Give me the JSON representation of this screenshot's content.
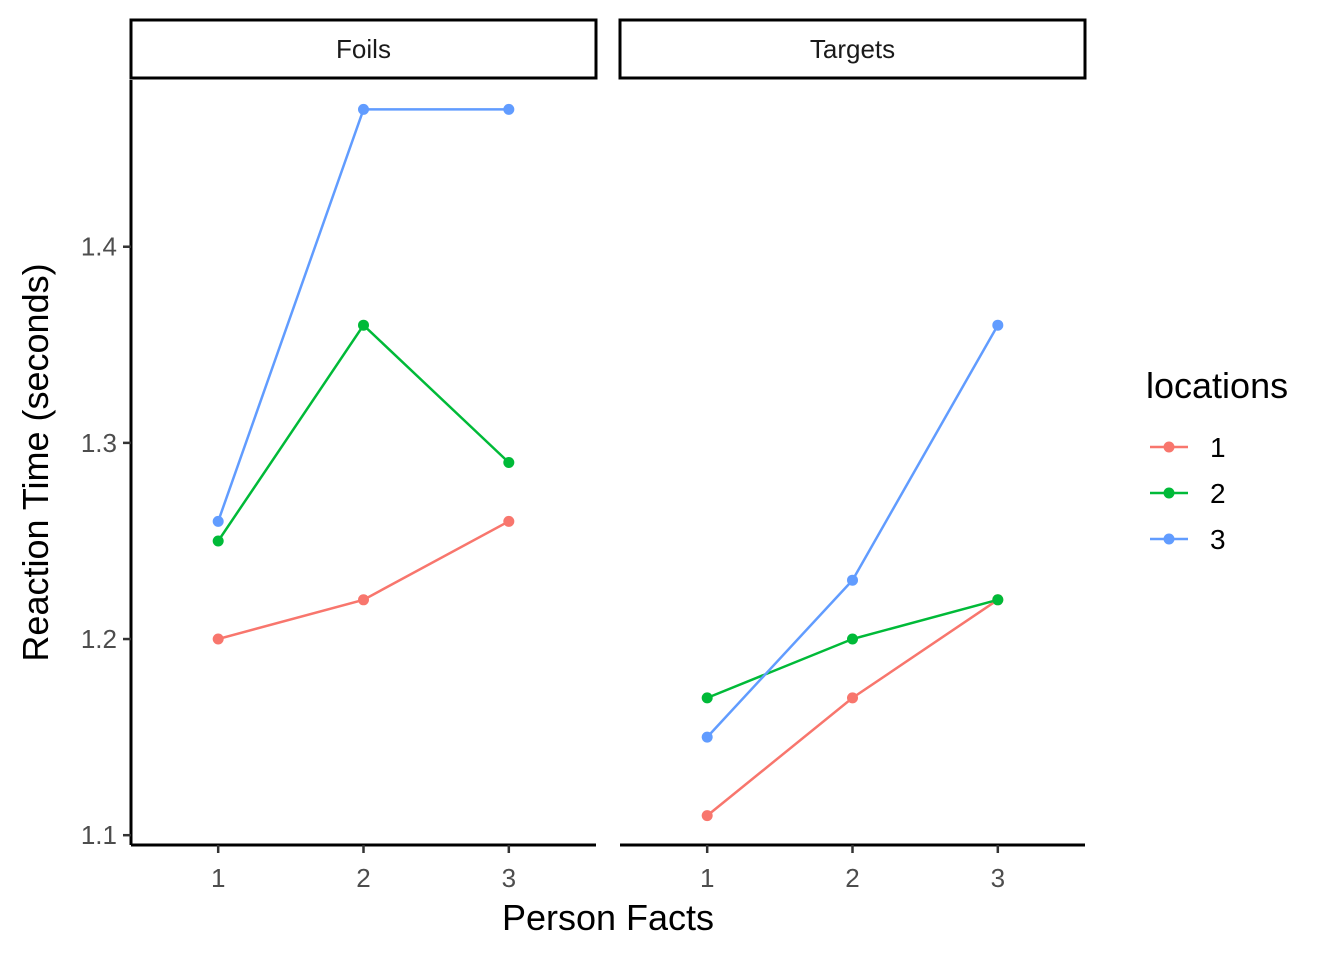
{
  "chart_data": {
    "type": "line",
    "xlabel": "Person Facts",
    "ylabel": "Reaction Time (seconds)",
    "x": [
      1,
      2,
      3
    ],
    "x_ticks": [
      "1",
      "2",
      "3"
    ],
    "xlim": [
      0.4,
      3.6
    ],
    "ylim": [
      1.095,
      1.485
    ],
    "y_ticks": [
      1.1,
      1.2,
      1.3,
      1.4
    ],
    "y_tick_labels": [
      "1.1",
      "1.2",
      "1.3",
      "1.4"
    ],
    "grid": false,
    "legend": {
      "title": "locations",
      "position": "right",
      "entries": [
        "1",
        "2",
        "3"
      ]
    },
    "colors": {
      "1": "#F8766D",
      "2": "#00BA38",
      "3": "#619CFF"
    },
    "facets": [
      {
        "label": "Foils",
        "series": [
          {
            "name": "1",
            "values": [
              1.2,
              1.22,
              1.26
            ]
          },
          {
            "name": "2",
            "values": [
              1.25,
              1.36,
              1.29
            ]
          },
          {
            "name": "3",
            "values": [
              1.26,
              1.47,
              1.47
            ]
          }
        ]
      },
      {
        "label": "Targets",
        "series": [
          {
            "name": "1",
            "values": [
              1.11,
              1.17,
              1.22
            ]
          },
          {
            "name": "2",
            "values": [
              1.17,
              1.2,
              1.22
            ]
          },
          {
            "name": "3",
            "values": [
              1.15,
              1.23,
              1.36
            ]
          }
        ]
      }
    ]
  }
}
